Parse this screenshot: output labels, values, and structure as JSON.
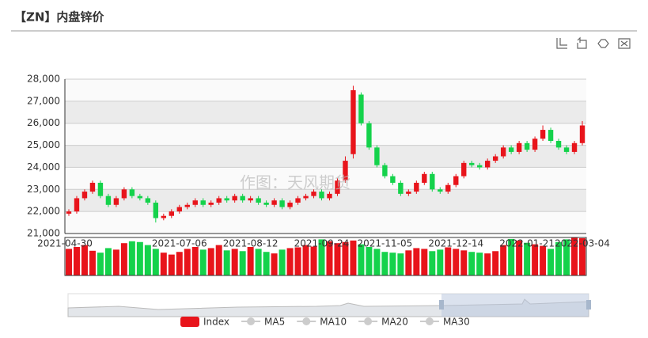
{
  "chart_data": {
    "type": "candlestick",
    "title": "【ZN】内盘锌价",
    "watermark": "作图：天风期货",
    "categories": [
      "2021-04-30",
      null,
      null,
      null,
      null,
      null,
      null,
      null,
      null,
      null,
      null,
      null,
      null,
      null,
      "2021-07-06",
      null,
      null,
      null,
      null,
      null,
      null,
      null,
      null,
      "2021-08-12",
      null,
      null,
      null,
      null,
      null,
      null,
      null,
      null,
      "2021-09-24",
      null,
      null,
      null,
      null,
      null,
      null,
      null,
      "2021-11-05",
      null,
      null,
      null,
      null,
      null,
      null,
      null,
      null,
      "2021-12-14",
      null,
      null,
      null,
      null,
      null,
      null,
      null,
      null,
      "2022-01-21",
      null,
      null,
      null,
      null,
      null,
      null,
      "2022-03-04"
    ],
    "open": [
      21900,
      22000,
      22600,
      22900,
      23300,
      22700,
      22300,
      22600,
      23000,
      22700,
      22600,
      22400,
      21700,
      21800,
      22000,
      22200,
      22300,
      22500,
      22300,
      22400,
      22600,
      22500,
      22700,
      22500,
      22600,
      22400,
      22300,
      22500,
      22200,
      22400,
      22600,
      22700,
      22900,
      22600,
      22800,
      23400,
      24600,
      27300,
      26000,
      24900,
      24100,
      23600,
      23300,
      22800,
      22900,
      23300,
      23700,
      23000,
      22900,
      23200,
      23600,
      24200,
      24100,
      24000,
      24300,
      24500,
      24900,
      24700,
      25100,
      24800,
      25300,
      25700,
      25200,
      24900,
      24700,
      25100
    ],
    "close": [
      22000,
      22600,
      22900,
      23300,
      22700,
      22300,
      22600,
      23000,
      22700,
      22600,
      22400,
      21700,
      21800,
      22000,
      22200,
      22300,
      22500,
      22300,
      22400,
      22600,
      22500,
      22700,
      22500,
      22600,
      22400,
      22300,
      22500,
      22200,
      22400,
      22600,
      22700,
      22900,
      22600,
      22800,
      23400,
      24300,
      27500,
      26000,
      24900,
      24100,
      23600,
      23300,
      22800,
      22900,
      23300,
      23700,
      23000,
      22900,
      23200,
      23600,
      24200,
      24100,
      24000,
      24300,
      24500,
      24900,
      24700,
      25100,
      24800,
      25300,
      25700,
      25200,
      24900,
      24700,
      25100,
      25900
    ],
    "low": [
      21800,
      21900,
      22500,
      22800,
      22600,
      22200,
      22200,
      22500,
      22600,
      22500,
      22300,
      21500,
      21600,
      21700,
      21900,
      22100,
      22200,
      22200,
      22200,
      22300,
      22400,
      22400,
      22400,
      22400,
      22300,
      22200,
      22200,
      22100,
      22100,
      22300,
      22500,
      22600,
      22500,
      22500,
      22700,
      23300,
      24400,
      25900,
      24800,
      24000,
      23500,
      23200,
      22700,
      22700,
      22800,
      23200,
      22900,
      22800,
      22800,
      23100,
      23500,
      24000,
      23900,
      23900,
      24200,
      24400,
      24600,
      24600,
      24700,
      24700,
      25200,
      25100,
      24800,
      24600,
      24600,
      25000
    ],
    "high": [
      22100,
      22700,
      23000,
      23400,
      23400,
      22800,
      22700,
      23100,
      23100,
      22800,
      22700,
      22500,
      21900,
      22100,
      22300,
      22400,
      22600,
      22600,
      22500,
      22700,
      22700,
      22800,
      22800,
      22700,
      22700,
      22500,
      22600,
      22600,
      22500,
      22700,
      22800,
      23000,
      23000,
      22900,
      23500,
      24500,
      27700,
      27400,
      26100,
      25000,
      24200,
      23700,
      23400,
      23000,
      23400,
      23800,
      23800,
      23100,
      23300,
      23700,
      24300,
      24300,
      24200,
      24400,
      24600,
      25000,
      25000,
      25200,
      25200,
      25400,
      25900,
      25800,
      25300,
      25000,
      25200,
      26100
    ],
    "volume": [
      70,
      75,
      80,
      65,
      60,
      72,
      68,
      85,
      90,
      88,
      80,
      70,
      60,
      55,
      62,
      70,
      75,
      68,
      72,
      80,
      66,
      70,
      64,
      75,
      70,
      62,
      58,
      68,
      72,
      74,
      80,
      76,
      95,
      90,
      85,
      88,
      92,
      82,
      75,
      70,
      62,
      60,
      58,
      66,
      72,
      70,
      64,
      68,
      74,
      70,
      66,
      62,
      60,
      58,
      64,
      80,
      96,
      92,
      86,
      82,
      78,
      70,
      88,
      95,
      100,
      98
    ],
    "up_color": "#e8141b",
    "down_color": "#14d24b",
    "ylim": [
      21000,
      28000
    ],
    "yticks": [
      {
        "value": 21000,
        "label": "21,000"
      },
      {
        "value": 22000,
        "label": "22,000"
      },
      {
        "value": 23000,
        "label": "23,000"
      },
      {
        "value": 24000,
        "label": "24,000"
      },
      {
        "value": 25000,
        "label": "25,000"
      },
      {
        "value": 26000,
        "label": "26,000"
      },
      {
        "value": 27000,
        "label": "27,000"
      },
      {
        "value": 28000,
        "label": "28,000"
      }
    ],
    "legend": [
      {
        "name": "Index",
        "color": "#e8141b"
      },
      {
        "name": "MA5",
        "color": "#cccccc"
      },
      {
        "name": "MA10",
        "color": "#cccccc"
      },
      {
        "name": "MA20",
        "color": "#cccccc"
      },
      {
        "name": "MA30",
        "color": "#cccccc"
      }
    ]
  }
}
